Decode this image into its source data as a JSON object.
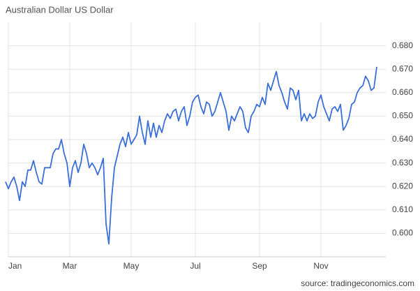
{
  "chart_data": {
    "type": "line",
    "title": "Australian Dollar US Dollar",
    "source": "source: tradingeconomics.com",
    "categories": [
      null,
      "Jan",
      null,
      null,
      null,
      null,
      null,
      null,
      null,
      null,
      null,
      null,
      null,
      null,
      null,
      null,
      null,
      null,
      null,
      null,
      null,
      null,
      null,
      "Mar",
      null,
      null,
      null,
      null,
      null,
      null,
      null,
      null,
      null,
      null,
      null,
      null,
      null,
      null,
      null,
      null,
      null,
      null,
      null,
      null,
      null,
      "May",
      null,
      null,
      null,
      null,
      null,
      null,
      null,
      null,
      null,
      null,
      null,
      null,
      null,
      null,
      null,
      null,
      null,
      null,
      null,
      null,
      null,
      null,
      "Jul",
      null,
      null,
      null,
      null,
      null,
      null,
      null,
      null,
      null,
      null,
      null,
      null,
      null,
      null,
      null,
      null,
      null,
      null,
      null,
      null,
      null,
      null,
      "Sep",
      null,
      null,
      null,
      null,
      null,
      null,
      null,
      null,
      null,
      null,
      null,
      null,
      null,
      null,
      null,
      null,
      null,
      null,
      null,
      null,
      null,
      "Nov",
      null,
      null,
      null,
      null,
      null,
      null,
      null,
      null,
      null,
      null,
      null,
      null,
      null,
      null,
      null,
      null,
      null,
      null,
      null,
      null
    ],
    "series": [
      {
        "name": "Australian Dollar US Dollar",
        "color": "#3a6fdc",
        "values": [
          0.622,
          0.619,
          0.622,
          0.624,
          0.62,
          0.614,
          0.622,
          0.62,
          0.627,
          0.627,
          0.631,
          0.626,
          0.622,
          0.621,
          0.628,
          0.628,
          0.628,
          0.634,
          0.636,
          0.636,
          0.64,
          0.634,
          0.63,
          0.62,
          0.628,
          0.631,
          0.626,
          0.63,
          0.638,
          0.634,
          0.628,
          0.63,
          0.628,
          0.625,
          0.628,
          0.632,
          0.604,
          0.5955,
          0.615,
          0.628,
          0.633,
          0.638,
          0.641,
          0.637,
          0.643,
          0.638,
          0.64,
          0.642,
          0.65,
          0.643,
          0.638,
          0.648,
          0.641,
          0.647,
          0.641,
          0.646,
          0.643,
          0.648,
          0.651,
          0.649,
          0.652,
          0.653,
          0.648,
          0.652,
          0.654,
          0.646,
          0.65,
          0.656,
          0.658,
          0.659,
          0.654,
          0.651,
          0.656,
          0.655,
          0.65,
          0.652,
          0.656,
          0.66,
          0.656,
          0.652,
          0.644,
          0.65,
          0.648,
          0.651,
          0.654,
          0.652,
          0.645,
          0.643,
          0.65,
          0.652,
          0.655,
          0.654,
          0.658,
          0.655,
          0.664,
          0.661,
          0.665,
          0.669,
          0.663,
          0.66,
          0.656,
          0.653,
          0.662,
          0.661,
          0.657,
          0.661,
          0.648,
          0.651,
          0.648,
          0.651,
          0.649,
          0.65,
          0.656,
          0.659,
          0.654,
          0.651,
          0.648,
          0.653,
          0.654,
          0.652,
          0.655,
          0.644,
          0.646,
          0.649,
          0.655,
          0.656,
          0.66,
          0.662,
          0.663,
          0.667,
          0.665,
          0.661,
          0.662,
          0.671
        ]
      }
    ],
    "ylim": [
      0.59,
      0.69
    ],
    "yticks": [
      {
        "value": 0.6,
        "label": "0.600"
      },
      {
        "value": 0.61,
        "label": "0.610"
      },
      {
        "value": 0.62,
        "label": "0.620"
      },
      {
        "value": 0.63,
        "label": "0.630"
      },
      {
        "value": 0.64,
        "label": "0.640"
      },
      {
        "value": 0.65,
        "label": "0.650"
      },
      {
        "value": 0.66,
        "label": "0.660"
      },
      {
        "value": 0.67,
        "label": "0.670"
      },
      {
        "value": 0.68,
        "label": "0.680"
      }
    ],
    "grid": true
  }
}
